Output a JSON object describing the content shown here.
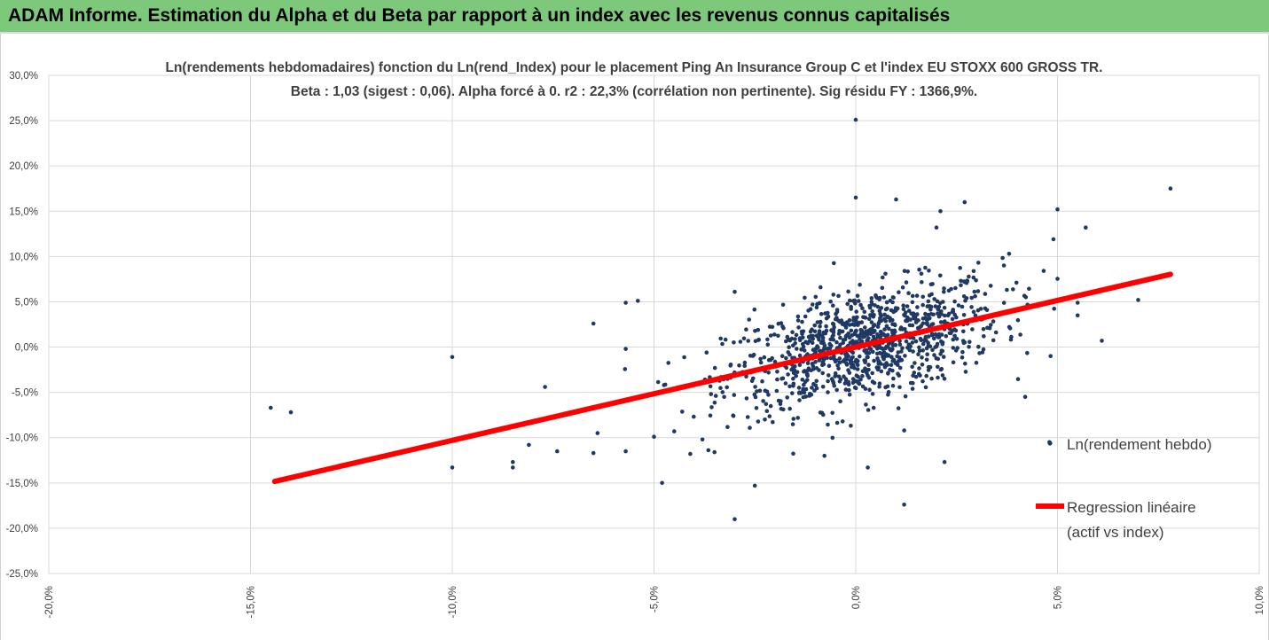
{
  "header": {
    "title": "ADAM Informe. Estimation du Alpha et du Beta par rapport à un index avec les revenus connus capitalisés"
  },
  "colors": {
    "header_bg": "#7ec87c",
    "accent_corner": "#f2b800",
    "points": "#1f3864",
    "regression": "#ff0000",
    "grid": "#d9d9d9",
    "text": "#404040"
  },
  "chart_data": {
    "type": "scatter",
    "title_lines": [
      "Ln(rendements hebdomadaires) fonction du Ln(rend_Index) pour le placement Ping An Insurance Group C et l'index EU STOXX 600 GROSS TR.",
      "Beta : 1,03 (sigest : 0,06). Alpha forcé à 0. r2 : 22,3% (corrélation non pertinente). Sig résidu FY : 1366,9%."
    ],
    "xlim": [
      -0.2,
      0.1
    ],
    "ylim": [
      -0.25,
      0.3
    ],
    "x_ticks": [
      "-20,0%",
      "-15,0%",
      "-10,0%",
      "-5,0%",
      "0,0%",
      "5,0%",
      "10,0%"
    ],
    "y_ticks": [
      "30,0%",
      "25,0%",
      "20,0%",
      "15,0%",
      "10,0%",
      "5,0%",
      "0,0%",
      "-5,0%",
      "-10,0%",
      "-15,0%",
      "-20,0%",
      "-25,0%"
    ],
    "grid": "horizontal and vertical",
    "legend_position": "right",
    "series": [
      {
        "name": "Ln(rendement hebdo)",
        "kind": "scatter",
        "outliers": [
          [
            -0.145,
            -0.067
          ],
          [
            -0.14,
            -0.072
          ],
          [
            -0.1,
            -0.011
          ],
          [
            -0.1,
            -0.133
          ],
          [
            -0.085,
            -0.133
          ],
          [
            -0.085,
            -0.127
          ],
          [
            -0.081,
            -0.108
          ],
          [
            -0.077,
            -0.044
          ],
          [
            -0.074,
            -0.115
          ],
          [
            -0.065,
            -0.117
          ],
          [
            -0.065,
            0.026
          ],
          [
            -0.064,
            -0.095
          ],
          [
            -0.057,
            0.049
          ],
          [
            -0.057,
            -0.002
          ],
          [
            -0.057,
            -0.115
          ],
          [
            -0.054,
            0.051
          ],
          [
            -0.05,
            -0.099
          ],
          [
            -0.048,
            -0.15
          ],
          [
            -0.045,
            -0.093
          ],
          [
            -0.041,
            -0.118
          ],
          [
            -0.038,
            -0.102
          ],
          [
            -0.035,
            -0.116
          ],
          [
            -0.03,
            0.061
          ],
          [
            -0.03,
            -0.19
          ],
          [
            -0.025,
            -0.153
          ],
          [
            0.0,
            0.251
          ],
          [
            0.0,
            0.165
          ],
          [
            0.003,
            -0.133
          ],
          [
            0.01,
            0.163
          ],
          [
            0.012,
            -0.092
          ],
          [
            0.02,
            0.132
          ],
          [
            0.021,
            0.15
          ],
          [
            0.022,
            -0.127
          ],
          [
            0.027,
            0.16
          ],
          [
            0.012,
            -0.174
          ],
          [
            0.038,
            0.103
          ],
          [
            0.042,
            -0.055
          ],
          [
            0.048,
            -0.105
          ],
          [
            0.049,
            0.119
          ],
          [
            0.05,
            0.152
          ],
          [
            0.055,
            0.049
          ],
          [
            0.055,
            0.035
          ],
          [
            0.057,
            0.132
          ],
          [
            0.061,
            0.007
          ],
          [
            0.07,
            0.052
          ],
          [
            0.078,
            0.175
          ]
        ]
      },
      {
        "name": "Regression linéaire (actif vs index)",
        "kind": "line",
        "slope": 1.03,
        "x_range": [
          -0.144,
          0.078
        ]
      }
    ]
  },
  "legend": {
    "scatter_label": "Ln(rendement hebdo)",
    "line_label_1": "Regression linéaire",
    "line_label_2": "(actif vs index)"
  }
}
